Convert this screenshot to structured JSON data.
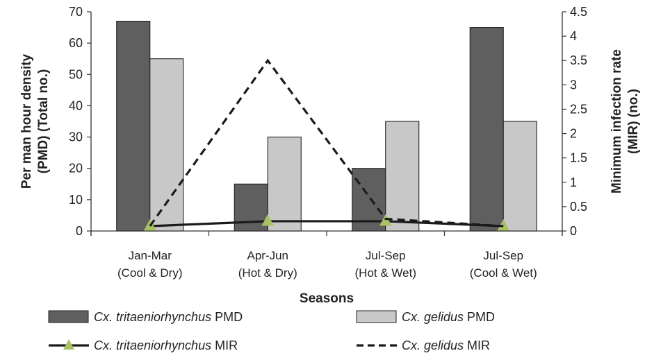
{
  "chart_data": {
    "type": "bar",
    "categories": [
      {
        "line1": "Jan-Mar",
        "line2": "(Cool & Dry)"
      },
      {
        "line1": "Apr-Jun",
        "line2": "(Hot & Dry)"
      },
      {
        "line1": "Jul-Sep",
        "line2": "(Hot & Wet)"
      },
      {
        "line1": "Jul-Sep",
        "line2": "(Cool & Wet)"
      }
    ],
    "bar_series": [
      {
        "name_species": "Cx. tritaeniorhynchus",
        "name_suffix": "PMD",
        "color": "#5f5f5f",
        "values": [
          67,
          15,
          20,
          65
        ]
      },
      {
        "name_species": "Cx. gelidus",
        "name_suffix": "PMD",
        "color": "#c8c8c8",
        "values": [
          55,
          30,
          35,
          35
        ]
      }
    ],
    "line_series": [
      {
        "name_species": "Cx. tritaeniorhynchus",
        "name_suffix": "MIR",
        "color": "#1a1a1a",
        "marker": "triangle",
        "marker_color": "#a7c263",
        "dash": "solid",
        "values": [
          0.1,
          0.2,
          0.2,
          0.1
        ]
      },
      {
        "name_species": "Cx. gelidus",
        "name_suffix": "MIR",
        "color": "#1a1a1a",
        "dash": "dashed",
        "values": [
          0.1,
          3.5,
          0.25,
          0.1
        ]
      }
    ],
    "y_left": {
      "label_line1": "Per man hour density",
      "label_line2": "(PMD) (Total no.)",
      "min": 0,
      "max": 70,
      "ticks": [
        "0",
        "10",
        "20",
        "30",
        "40",
        "50",
        "60",
        "70"
      ]
    },
    "y_right": {
      "label_line1": "Minimum infection rate",
      "label_line2": "(MIR) (no.)",
      "min": 0,
      "max": 4.5,
      "ticks": [
        "0",
        "0.5",
        "1",
        "1.5",
        "2",
        "2.5",
        "3",
        "3.5",
        "4",
        "4.5"
      ]
    },
    "xlabel": "Seasons",
    "legend_position": "bottom"
  }
}
